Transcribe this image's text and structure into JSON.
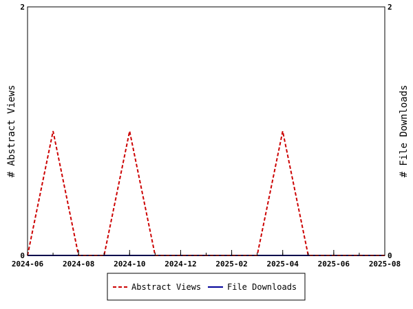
{
  "chart_data": {
    "type": "line",
    "x_type": "month",
    "x_range": [
      "2024-06",
      "2025-08"
    ],
    "x_ticks": [
      "2024-06",
      "2024-08",
      "2024-10",
      "2024-12",
      "2025-02",
      "2025-04",
      "2025-06",
      "2025-08"
    ],
    "x": [
      "2024-06",
      "2024-07",
      "2024-08",
      "2024-09",
      "2024-10",
      "2024-11",
      "2024-12",
      "2025-01",
      "2025-02",
      "2025-03",
      "2025-04",
      "2025-05",
      "2025-06",
      "2025-07",
      "2025-08"
    ],
    "ylabel_left": "# Abstract Views",
    "ylabel_right": "# File Downloads",
    "ylim_left": [
      0,
      2
    ],
    "ylim_right": [
      0,
      2
    ],
    "y_ticks_left": [
      "0",
      "2"
    ],
    "y_ticks_right": [
      "0",
      "2"
    ],
    "series": [
      {
        "name": "Abstract Views",
        "axis": "left",
        "color": "#cc0000",
        "style": "dashed",
        "values": [
          0,
          1,
          0,
          0,
          1,
          0,
          0,
          0,
          0,
          0,
          1,
          0,
          0,
          0,
          0
        ]
      },
      {
        "name": "File Downloads",
        "axis": "right",
        "color": "#000099",
        "style": "solid",
        "values": [
          0,
          0,
          0,
          0,
          0,
          0,
          0,
          0,
          0,
          0,
          0,
          0,
          0,
          0,
          0
        ]
      }
    ],
    "grid": false,
    "legend_position": "bottom"
  }
}
